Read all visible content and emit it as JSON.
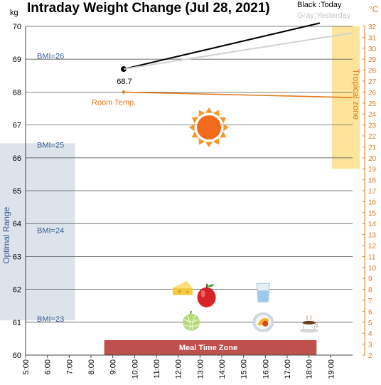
{
  "chart_data": {
    "type": "line",
    "title": "Intraday Weight Change (Jul 28, 2021)",
    "y_unit_left": "kg",
    "y_unit_right": "°C",
    "legend": {
      "today": "Black :Today",
      "yesterday": "Gray:Yesterday",
      "placement": "top-right"
    },
    "x": {
      "ticks": [
        "5:00",
        "6:00",
        "7:00",
        "8:00",
        "9:00",
        "10:00",
        "11:00",
        "12:00",
        "13:00",
        "14:00",
        "15:00",
        "16:00",
        "17:00",
        "18:00",
        "19:00"
      ],
      "range_hours": [
        5,
        20
      ]
    },
    "y_left": {
      "range": [
        60,
        70
      ],
      "ticks": [
        60,
        61,
        62,
        63,
        64,
        65,
        66,
        67,
        68,
        69,
        70
      ],
      "grid": true
    },
    "y_right": {
      "range": [
        2,
        32
      ],
      "ticks": [
        2,
        3,
        4,
        5,
        6,
        7,
        8,
        9,
        10,
        11,
        12,
        13,
        14,
        15,
        16,
        17,
        18,
        19,
        20,
        21,
        22,
        23,
        24,
        25,
        26,
        27,
        28,
        29,
        30,
        31,
        32
      ]
    },
    "series": [
      {
        "name": "Today",
        "color": "#000000",
        "axis": "left",
        "points": [
          {
            "x": 9.5,
            "y": 68.7
          },
          {
            "x": 18.5,
            "y": 70.1
          }
        ],
        "marker_label": "68.7"
      },
      {
        "name": "Yesterday",
        "color": "#d3d3d3",
        "axis": "left",
        "points": [
          {
            "x": 9.5,
            "y": 68.7
          },
          {
            "x": 20.0,
            "y": 69.8
          }
        ]
      },
      {
        "name": "Room Temp.",
        "color": "#e07b20",
        "axis": "right",
        "points": [
          {
            "x": 9.5,
            "y": 26.0
          },
          {
            "x": 20.0,
            "y": 25.5
          }
        ]
      }
    ],
    "annotations": {
      "bmi_lines": [
        {
          "label": "BMI=26",
          "y": 69.1
        },
        {
          "label": "BMI=25",
          "y": 66.4
        },
        {
          "label": "BMI=24",
          "y": 63.8
        },
        {
          "label": "BMI=23",
          "y": 61.1
        }
      ],
      "optimal_range": {
        "label": "Optimal Range",
        "y": [
          61.1,
          66.4
        ],
        "x": [
          5.0,
          6.75
        ],
        "color": "#dde3ea"
      },
      "tropical_zone": {
        "label": "Tropical zone",
        "temp": [
          19,
          32
        ],
        "x": [
          19.25,
          20.0
        ],
        "color": "#fde49a"
      },
      "room_temp_label": "Room Temp.",
      "meal_time_zone": {
        "label": "Meal Time Zone",
        "x": [
          9.0,
          19.0
        ],
        "y": [
          60.0,
          60.5
        ],
        "color": "#c0504d"
      },
      "weather_icon": "sun-icon",
      "food_icons": [
        {
          "name": "cheese-icon",
          "x": 12.2,
          "y": 62.0
        },
        {
          "name": "apple-icon",
          "x": 13.3,
          "y": 61.8
        },
        {
          "name": "melon-icon",
          "x": 12.6,
          "y": 61.0
        },
        {
          "name": "water-glass-icon",
          "x": 15.9,
          "y": 61.9
        },
        {
          "name": "curry-plate-icon",
          "x": 15.9,
          "y": 61.0
        },
        {
          "name": "coffee-cup-icon",
          "x": 18.0,
          "y": 60.9
        }
      ]
    }
  }
}
